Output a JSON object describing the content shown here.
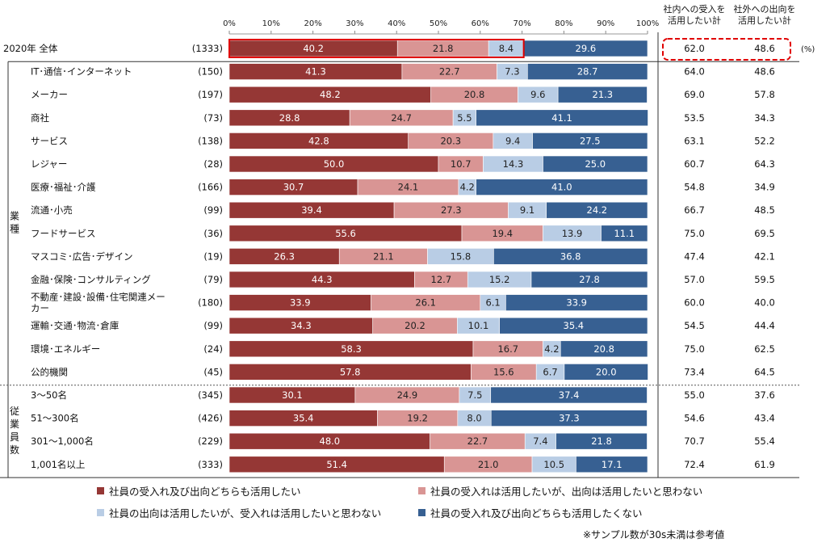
{
  "chart_data": {
    "type": "bar",
    "stacked": true,
    "orientation": "horizontal",
    "x_ticks": [
      "0%",
      "10%",
      "20%",
      "30%",
      "40%",
      "50%",
      "60%",
      "70%",
      "80%",
      "90%",
      "100%"
    ],
    "xlim": [
      0,
      100
    ],
    "series": [
      {
        "name": "社員の受入れ及び出向どちらも活用したい",
        "color": "#953735"
      },
      {
        "name": "社員の受入れは活用したいが、出向は活用したいと思わない",
        "color": "#d99594"
      },
      {
        "name": "社員の出向は活用したいが、受入れは活用したいと思わない",
        "color": "#b9cde5"
      },
      {
        "name": "社員の受入れ及び出向どちらも活用したくない",
        "color": "#376092"
      }
    ],
    "columns": {
      "internal": "社内への受入を活用したい計",
      "internal_lines": [
        "社内への受入を",
        "活用したい計"
      ],
      "external": "社外への出向を活用したい計",
      "external_lines": [
        "社外への出向を",
        "活用したい計"
      ]
    },
    "unit_label": "(%)",
    "group_labels": [
      {
        "text": "業種",
        "chars": [
          "業",
          "種"
        ]
      },
      {
        "text": "従業員数",
        "chars": [
          "従",
          "業",
          "員",
          "数"
        ]
      }
    ],
    "rows": [
      {
        "label": "2020年 全体",
        "n": "(1333)",
        "values": [
          40.2,
          21.8,
          8.4,
          29.6
        ],
        "internal": "62.0",
        "external": "48.6",
        "highlight": true
      },
      {
        "label": "IT･通信･インターネット",
        "n": "(150)",
        "values": [
          41.3,
          22.7,
          7.3,
          28.7
        ],
        "internal": "64.0",
        "external": "48.6"
      },
      {
        "label": "メーカー",
        "n": "(197)",
        "values": [
          48.2,
          20.8,
          9.6,
          21.3
        ],
        "internal": "69.0",
        "external": "57.8"
      },
      {
        "label": "商社",
        "n": "(73)",
        "values": [
          28.8,
          24.7,
          5.5,
          41.1
        ],
        "internal": "53.5",
        "external": "34.3"
      },
      {
        "label": "サービス",
        "n": "(138)",
        "values": [
          42.8,
          20.3,
          9.4,
          27.5
        ],
        "internal": "63.1",
        "external": "52.2"
      },
      {
        "label": "レジャー",
        "n": "(28)",
        "values": [
          50.0,
          10.7,
          14.3,
          25.0
        ],
        "internal": "60.7",
        "external": "64.3"
      },
      {
        "label": "医療･福祉･介護",
        "n": "(166)",
        "values": [
          30.7,
          24.1,
          4.2,
          41.0
        ],
        "internal": "54.8",
        "external": "34.9"
      },
      {
        "label": "流通･小売",
        "n": "(99)",
        "values": [
          39.4,
          27.3,
          9.1,
          24.2
        ],
        "internal": "66.7",
        "external": "48.5"
      },
      {
        "label": "フードサービス",
        "n": "(36)",
        "values": [
          55.6,
          19.4,
          13.9,
          11.1
        ],
        "internal": "75.0",
        "external": "69.5"
      },
      {
        "label": "マスコミ･広告･デザイン",
        "n": "(19)",
        "values": [
          26.3,
          21.1,
          15.8,
          36.8
        ],
        "internal": "47.4",
        "external": "42.1"
      },
      {
        "label": "金融･保険･コンサルティング",
        "n": "(79)",
        "values": [
          44.3,
          12.7,
          15.2,
          27.8
        ],
        "internal": "57.0",
        "external": "59.5"
      },
      {
        "label": "不動産･建設･設備･住宅関連メーカー",
        "label_lines": [
          "不動産･建設･設備･住宅関連メー",
          "カー"
        ],
        "n": "(180)",
        "values": [
          33.9,
          26.1,
          6.1,
          33.9
        ],
        "internal": "60.0",
        "external": "40.0"
      },
      {
        "label": "運輸･交通･物流･倉庫",
        "n": "(99)",
        "values": [
          34.3,
          20.2,
          10.1,
          35.4
        ],
        "internal": "54.5",
        "external": "44.4"
      },
      {
        "label": "環境･エネルギー",
        "n": "(24)",
        "values": [
          58.3,
          16.7,
          4.2,
          20.8
        ],
        "internal": "75.0",
        "external": "62.5"
      },
      {
        "label": "公的機関",
        "n": "(45)",
        "values": [
          57.8,
          15.6,
          6.7,
          20.0
        ],
        "internal": "73.4",
        "external": "64.5"
      },
      {
        "label": "3～50名",
        "n": "(345)",
        "values": [
          30.1,
          24.9,
          7.5,
          37.4
        ],
        "internal": "55.0",
        "external": "37.6"
      },
      {
        "label": "51～300名",
        "n": "(426)",
        "values": [
          35.4,
          19.2,
          8.0,
          37.3
        ],
        "internal": "54.6",
        "external": "43.4"
      },
      {
        "label": "301～1,000名",
        "n": "(229)",
        "values": [
          48.0,
          22.7,
          7.4,
          21.8
        ],
        "internal": "70.7",
        "external": "55.4"
      },
      {
        "label": "1,001名以上",
        "n": "(333)",
        "values": [
          51.4,
          21.0,
          10.5,
          17.1
        ],
        "internal": "72.4",
        "external": "61.9"
      }
    ],
    "note": "※サンプル数が30s未満は参考値"
  }
}
